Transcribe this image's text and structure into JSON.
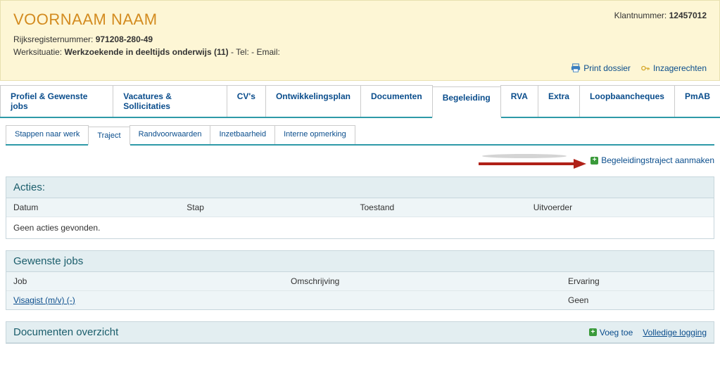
{
  "header": {
    "client_name": "VOORNAAM NAAM",
    "client_number_label": "Klantnummer:",
    "client_number": "12457012",
    "rrn_label": "Rijksregisternummer:",
    "rrn_value": "971208-280-49",
    "work_label": "Werksituatie:",
    "work_value": "Werkzoekende in deeltijds onderwijs (11)",
    "tel_label": "- Tel:",
    "email_label": "- Email:",
    "print_label": "Print dossier",
    "inzage_label": "Inzagerechten"
  },
  "colors": {
    "header_bg": "#fdf6d5",
    "accent_orange": "#d38b1f",
    "link_blue": "#0a4d8c",
    "teal_border": "#2e9aa8",
    "panel_title_bg": "#e3eef1",
    "panel_title_color": "#1a5d6b",
    "arrow_red": "#b02118"
  },
  "main_tabs": [
    "Profiel & Gewenste jobs",
    "Vacatures & Sollicitaties",
    "CV's",
    "Ontwikkelingsplan",
    "Documenten",
    "Begeleiding",
    "RVA",
    "Extra",
    "Loopbaancheques",
    "PmAB"
  ],
  "main_tab_active_index": 5,
  "sub_tabs": [
    "Stappen naar werk",
    "Traject",
    "Randvoorwaarden",
    "Inzetbaarheid",
    "Interne opmerking"
  ],
  "sub_tab_active_index": 1,
  "create_link": "Begeleidingstraject aanmaken",
  "acties": {
    "title": "Acties:",
    "columns": {
      "datum": "Datum",
      "stap": "Stap",
      "toestand": "Toestand",
      "uitvoerder": "Uitvoerder"
    },
    "empty": "Geen acties gevonden."
  },
  "gewenste_jobs": {
    "title": "Gewenste jobs",
    "columns": {
      "job": "Job",
      "omschrijving": "Omschrijving",
      "ervaring": "Ervaring"
    },
    "rows": [
      {
        "job": "Visagist (m/v) (-)",
        "omschrijving": "",
        "ervaring": "Geen"
      }
    ]
  },
  "documenten": {
    "title": "Documenten overzicht",
    "add_label": "Voeg toe",
    "log_label": "Volledige logging"
  }
}
